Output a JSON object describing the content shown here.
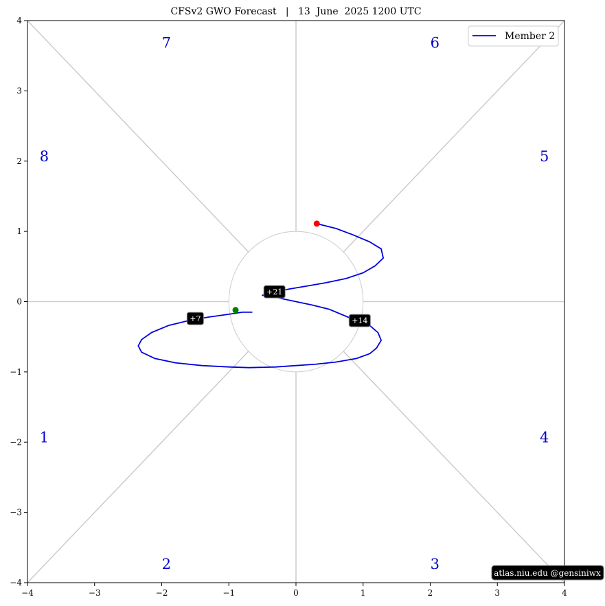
{
  "chart_data": {
    "type": "line",
    "title": "CFSv2 GWO Forecast   |   13  June  2025 1200 UTC",
    "xlim": [
      -4,
      4
    ],
    "ylim": [
      -4,
      4
    ],
    "xticks": [
      -4,
      -3,
      -2,
      -1,
      0,
      1,
      2,
      3,
      4
    ],
    "yticks": [
      -4,
      -3,
      -2,
      -1,
      0,
      1,
      2,
      3,
      4
    ],
    "tick_labels_x": [
      "−4",
      "−3",
      "−2",
      "−1",
      "0",
      "1",
      "2",
      "3",
      "4"
    ],
    "tick_labels_y": [
      "−4",
      "−3",
      "−2",
      "−1",
      "0",
      "1",
      "2",
      "3",
      "4"
    ],
    "grid": false,
    "legend_position": "top-right",
    "series": [
      {
        "name": "Member 2",
        "color": "#0000dd",
        "points": [
          [
            -0.65,
            -0.15
          ],
          [
            -0.8,
            -0.15
          ],
          [
            -1.0,
            -0.18
          ],
          [
            -1.3,
            -0.22
          ],
          [
            -1.6,
            -0.27
          ],
          [
            -1.9,
            -0.34
          ],
          [
            -2.15,
            -0.44
          ],
          [
            -2.3,
            -0.54
          ],
          [
            -2.35,
            -0.63
          ],
          [
            -2.3,
            -0.72
          ],
          [
            -2.1,
            -0.81
          ],
          [
            -1.8,
            -0.87
          ],
          [
            -1.4,
            -0.91
          ],
          [
            -1.0,
            -0.93
          ],
          [
            -0.7,
            -0.94
          ],
          [
            -0.3,
            -0.93
          ],
          [
            0.0,
            -0.91
          ],
          [
            0.3,
            -0.89
          ],
          [
            0.6,
            -0.86
          ],
          [
            0.9,
            -0.81
          ],
          [
            1.1,
            -0.74
          ],
          [
            1.2,
            -0.66
          ],
          [
            1.27,
            -0.55
          ],
          [
            1.22,
            -0.44
          ],
          [
            1.1,
            -0.34
          ],
          [
            0.9,
            -0.27
          ],
          [
            0.7,
            -0.19
          ],
          [
            0.5,
            -0.11
          ],
          [
            0.25,
            -0.05
          ],
          [
            0.0,
            0.0
          ],
          [
            -0.2,
            0.04
          ],
          [
            -0.35,
            0.08
          ],
          [
            -0.5,
            0.09
          ],
          [
            -0.3,
            0.14
          ],
          [
            -0.1,
            0.18
          ],
          [
            0.15,
            0.22
          ],
          [
            0.45,
            0.27
          ],
          [
            0.75,
            0.33
          ],
          [
            1.0,
            0.41
          ],
          [
            1.18,
            0.51
          ],
          [
            1.3,
            0.62
          ],
          [
            1.27,
            0.75
          ],
          [
            1.1,
            0.85
          ],
          [
            0.85,
            0.95
          ],
          [
            0.6,
            1.04
          ],
          [
            0.31,
            1.11
          ]
        ],
        "start_marker": {
          "x": 0.31,
          "y": 1.11,
          "color": "#ff0000"
        },
        "end_marker": {
          "x": -0.9,
          "y": -0.12,
          "color": "#008000"
        }
      }
    ],
    "day_labels": [
      {
        "text": "+7",
        "x": -1.5,
        "y": -0.24
      },
      {
        "text": "+14",
        "x": 0.95,
        "y": -0.27
      },
      {
        "text": "+21",
        "x": -0.32,
        "y": 0.14
      }
    ],
    "phase_labels": [
      {
        "text": "1",
        "x": -3.75,
        "y": -1.95
      },
      {
        "text": "2",
        "x": -1.93,
        "y": -3.75
      },
      {
        "text": "3",
        "x": 2.07,
        "y": -3.75
      },
      {
        "text": "4",
        "x": 3.7,
        "y": -1.95
      },
      {
        "text": "5",
        "x": 3.7,
        "y": 2.05
      },
      {
        "text": "6",
        "x": 2.07,
        "y": 3.67
      },
      {
        "text": "7",
        "x": -1.93,
        "y": 3.67
      },
      {
        "text": "8",
        "x": -3.75,
        "y": 2.05
      }
    ],
    "credit": "atlas.niu.edu  @gensiniwx",
    "colors": {
      "series": "#0000dd",
      "phase_labels": "#0000cc",
      "guide_lines": "#cccccc",
      "start_marker": "#ff0000",
      "end_marker": "#008000"
    }
  }
}
